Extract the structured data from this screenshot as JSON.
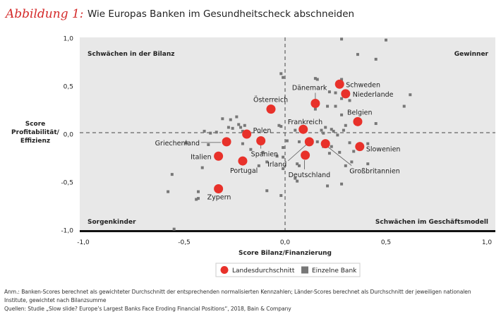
{
  "title": {
    "figure_label": "Abbildung 1:",
    "text": "Wie Europas Banken im Gesundheitscheck abschneiden"
  },
  "colors": {
    "country": "#e8312a",
    "bank": "#777777",
    "background": "#e8e8e8",
    "title_label": "#d42a2a"
  },
  "chart_data": {
    "type": "scatter",
    "xlabel": "Score Bilanz/Finanzierung",
    "ylabel": [
      "Score",
      "Profitabilität/",
      "Effizienz"
    ],
    "xlim": [
      -1.0,
      1.0
    ],
    "ylim": [
      -1.0,
      1.0
    ],
    "xticks": [
      "-1,0",
      "-0,5",
      "0,0",
      "0,5",
      "1,0"
    ],
    "yticks": [
      "1,0",
      "0,5",
      "0,0",
      "-0,5",
      "-1,0"
    ],
    "grid": false,
    "reference_lines": {
      "x": 0,
      "y": 0
    },
    "quadrants": {
      "top_left": "Schwächen in der Bilanz",
      "top_right": "Gewinner",
      "bottom_left": "Sorgenkinder",
      "bottom_right": "Schwächen im Geschäftsmodell"
    },
    "legend": {
      "placement": "bottom",
      "entries": [
        "Landesdurchschnitt",
        "Einzelne Bank"
      ]
    },
    "series": [
      {
        "name": "Landesdurchschnitt",
        "marker": "circle",
        "points": [
          {
            "label": "Schweden",
            "x": 0.27,
            "y": 0.52
          },
          {
            "label": "Niederlande",
            "x": 0.3,
            "y": 0.42
          },
          {
            "label": "Dänemark",
            "x": 0.15,
            "y": 0.32
          },
          {
            "label": "Österreich",
            "x": -0.07,
            "y": 0.26
          },
          {
            "label": "Belgien",
            "x": 0.36,
            "y": 0.13
          },
          {
            "label": "Frankreich",
            "x": 0.09,
            "y": 0.05
          },
          {
            "label": "Polen",
            "x": -0.19,
            "y": 0.0
          },
          {
            "label": "Griechenland",
            "x": -0.29,
            "y": -0.08
          },
          {
            "label": "Spanien",
            "x": -0.12,
            "y": -0.07
          },
          {
            "label": "Italien",
            "x": -0.33,
            "y": -0.23
          },
          {
            "label": "Portugal",
            "x": -0.21,
            "y": -0.28
          },
          {
            "label": "Zypern",
            "x": -0.33,
            "y": -0.57
          },
          {
            "label": "Irland",
            "x": 0.12,
            "y": -0.08
          },
          {
            "label": "Deutschland",
            "x": 0.1,
            "y": -0.22
          },
          {
            "label": "Großbritannien",
            "x": 0.2,
            "y": -0.1
          },
          {
            "label": "Slowenien",
            "x": 0.37,
            "y": -0.13
          }
        ]
      },
      {
        "name": "Einzelne Bank",
        "marker": "square",
        "points": [
          [
            0.28,
            0.99
          ],
          [
            0.5,
            0.98
          ],
          [
            0.36,
            0.83
          ],
          [
            0.45,
            0.78
          ],
          [
            -0.02,
            0.63
          ],
          [
            -0.01,
            0.59
          ],
          [
            0.15,
            0.58
          ],
          [
            0.16,
            0.57
          ],
          [
            0.28,
            0.57
          ],
          [
            0.62,
            0.41
          ],
          [
            0.59,
            0.29
          ],
          [
            0.22,
            0.44
          ],
          [
            0.25,
            0.43
          ],
          [
            0.28,
            0.37
          ],
          [
            0.32,
            0.35
          ],
          [
            0.21,
            0.29
          ],
          [
            0.25,
            0.29
          ],
          [
            0.15,
            0.26
          ],
          [
            0.28,
            0.2
          ],
          [
            0.45,
            0.11
          ],
          [
            -0.31,
            0.16
          ],
          [
            -0.27,
            0.15
          ],
          [
            -0.24,
            0.18
          ],
          [
            -0.37,
            0.01
          ],
          [
            -0.34,
            0.02
          ],
          [
            -0.28,
            0.07
          ],
          [
            -0.26,
            0.06
          ],
          [
            -0.23,
            0.1
          ],
          [
            -0.22,
            0.07
          ],
          [
            -0.2,
            0.09
          ],
          [
            -0.21,
            0.03
          ],
          [
            -0.03,
            0.09
          ],
          [
            -0.02,
            0.08
          ],
          [
            0.05,
            0.04
          ],
          [
            0.18,
            0.04
          ],
          [
            0.2,
            0.07
          ],
          [
            0.23,
            0.05
          ],
          [
            0.29,
            0.04
          ],
          [
            0.3,
            0.09
          ],
          [
            0.19,
            0.01
          ],
          [
            0.26,
            -0.01
          ],
          [
            0.24,
            0.03
          ],
          [
            -0.4,
            0.03
          ],
          [
            -0.49,
            -0.09
          ],
          [
            -0.38,
            -0.11
          ],
          [
            -0.21,
            -0.1
          ],
          [
            -0.17,
            -0.16
          ],
          [
            -0.11,
            -0.19
          ],
          [
            -0.04,
            -0.23
          ],
          [
            -0.09,
            -0.29
          ],
          [
            -0.13,
            -0.33
          ],
          [
            -0.01,
            -0.14
          ],
          [
            0.01,
            -0.07
          ],
          [
            0.07,
            -0.08
          ],
          [
            0.16,
            -0.08
          ],
          [
            0.19,
            -0.13
          ],
          [
            0.23,
            -0.13
          ],
          [
            0.22,
            -0.2
          ],
          [
            0.27,
            -0.19
          ],
          [
            0.32,
            -0.09
          ],
          [
            0.34,
            -0.18
          ],
          [
            0.33,
            -0.29
          ],
          [
            0.41,
            -0.1
          ],
          [
            0.41,
            -0.31
          ],
          [
            0.3,
            -0.33
          ],
          [
            0.06,
            -0.31
          ],
          [
            0.07,
            -0.33
          ],
          [
            -0.01,
            -0.24
          ],
          [
            -0.01,
            -0.36
          ],
          [
            0.05,
            -0.46
          ],
          [
            0.06,
            -0.49
          ],
          [
            0.21,
            -0.54
          ],
          [
            0.28,
            -0.52
          ],
          [
            -0.56,
            -0.42
          ],
          [
            -0.58,
            -0.6
          ],
          [
            -0.43,
            -0.6
          ],
          [
            -0.44,
            -0.68
          ],
          [
            -0.43,
            -0.67
          ],
          [
            -0.09,
            -0.59
          ],
          [
            -0.02,
            -0.64
          ],
          [
            -0.55,
            -0.99
          ],
          [
            -0.41,
            -0.35
          ]
        ]
      }
    ]
  },
  "notes": {
    "line1": "Anm.: Banken-Scores berechnet als gewichteter Durchschnitt der entsprechenden normalisierten Kennzahlen; Länder-Scores berechnet als Durchschnitt der jeweiligen nationalen",
    "line2": "Institute, gewichtet nach Bilanzsumme",
    "line3": "Quellen: Studie „Slow slide? Europe’s Largest Banks Face Eroding Financial Positions“, 2018, Bain & Company"
  }
}
